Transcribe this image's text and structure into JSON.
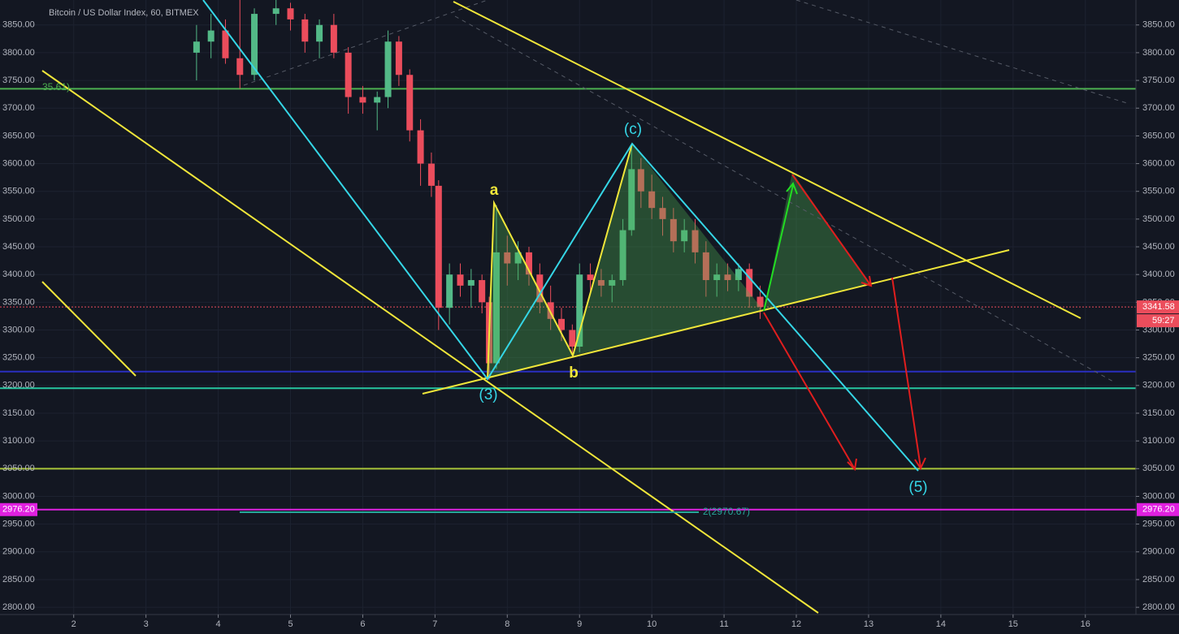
{
  "chart_data": {
    "type": "candlestick",
    "title": "Bitcoin / US Dollar Index, 60, BITMEX",
    "x": [
      3.7,
      3.9,
      4.1,
      4.3,
      4.5,
      4.8,
      5.0,
      5.2,
      5.4,
      5.6,
      5.8,
      6.0,
      6.2,
      6.35,
      6.5,
      6.65,
      6.8,
      6.95,
      7.05,
      7.2,
      7.35,
      7.5,
      7.65,
      7.75,
      7.85,
      8.0,
      8.15,
      8.3,
      8.45,
      8.6,
      8.75,
      8.9,
      9.0,
      9.15,
      9.3,
      9.45,
      9.6,
      9.72,
      9.85,
      10.0,
      10.15,
      10.3,
      10.45,
      10.6,
      10.75,
      10.9,
      11.05,
      11.2,
      11.35,
      11.5
    ],
    "open": [
      3800,
      3820,
      3840,
      3790,
      3760,
      3870,
      3880,
      3860,
      3820,
      3850,
      3800,
      3720,
      3710,
      3720,
      3820,
      3760,
      3660,
      3600,
      3560,
      3340,
      3400,
      3380,
      3390,
      3350,
      3240,
      3440,
      3420,
      3440,
      3400,
      3350,
      3320,
      3300,
      3270,
      3400,
      3390,
      3380,
      3390,
      3480,
      3590,
      3550,
      3520,
      3500,
      3460,
      3480,
      3440,
      3390,
      3400,
      3390,
      3410,
      3360
    ],
    "high": [
      3850,
      3870,
      3860,
      3895,
      3880,
      3895,
      3890,
      3870,
      3860,
      3870,
      3810,
      3740,
      3730,
      3840,
      3830,
      3770,
      3680,
      3620,
      3570,
      3420,
      3420,
      3410,
      3400,
      3360,
      3525,
      3470,
      3460,
      3450,
      3420,
      3380,
      3340,
      3310,
      3420,
      3420,
      3410,
      3400,
      3500,
      3635,
      3610,
      3580,
      3540,
      3520,
      3500,
      3500,
      3460,
      3420,
      3420,
      3420,
      3420,
      3380
    ],
    "low": [
      3750,
      3790,
      3780,
      3735,
      3750,
      3850,
      3840,
      3800,
      3790,
      3790,
      3690,
      3690,
      3660,
      3700,
      3740,
      3640,
      3560,
      3540,
      3300,
      3310,
      3360,
      3340,
      3330,
      3210,
      3230,
      3380,
      3390,
      3380,
      3330,
      3300,
      3280,
      3250,
      3260,
      3370,
      3360,
      3350,
      3380,
      3470,
      3520,
      3500,
      3470,
      3440,
      3440,
      3420,
      3360,
      3360,
      3370,
      3370,
      3340,
      3320
    ],
    "close": [
      3820,
      3840,
      3790,
      3760,
      3870,
      3880,
      3860,
      3820,
      3850,
      3800,
      3720,
      3710,
      3720,
      3820,
      3760,
      3660,
      3600,
      3560,
      3340,
      3400,
      3380,
      3390,
      3350,
      3240,
      3440,
      3420,
      3440,
      3400,
      3350,
      3320,
      3300,
      3270,
      3400,
      3390,
      3380,
      3390,
      3480,
      3590,
      3550,
      3520,
      3500,
      3460,
      3480,
      3440,
      3390,
      3400,
      3390,
      3410,
      3360,
      3341.58
    ],
    "up_color": "#53b987",
    "down_color": "#eb4d5c",
    "xlim": [
      0.98,
      16.7
    ],
    "ylim": [
      2787,
      3895
    ],
    "xticks": [
      2,
      3,
      4,
      5,
      6,
      7,
      8,
      9,
      10,
      11,
      12,
      13,
      14,
      15,
      16
    ],
    "yticks": [
      {
        "value": 2800,
        "label": "2800.00"
      },
      {
        "value": 2850,
        "label": "2850.00"
      },
      {
        "value": 2900,
        "label": "2900.00"
      },
      {
        "value": 2950,
        "label": "2950.00"
      },
      {
        "value": 3000,
        "label": "3000.00"
      },
      {
        "value": 3050,
        "label": "3050.00"
      },
      {
        "value": 3100,
        "label": "3100.00"
      },
      {
        "value": 3150,
        "label": "3150.00"
      },
      {
        "value": 3200,
        "label": "3200.00"
      },
      {
        "value": 3250,
        "label": "3250.00"
      },
      {
        "value": 3300,
        "label": "3300.00"
      },
      {
        "value": 3350,
        "label": "3350.00"
      },
      {
        "value": 3400,
        "label": "3400.00"
      },
      {
        "value": 3450,
        "label": "3450.00"
      },
      {
        "value": 3500,
        "label": "3500.00"
      },
      {
        "value": 3550,
        "label": "3550.00"
      },
      {
        "value": 3600,
        "label": "3600.00"
      },
      {
        "value": 3650,
        "label": "3650.00"
      },
      {
        "value": 3700,
        "label": "3700.00"
      },
      {
        "value": 3750,
        "label": "3750.00"
      },
      {
        "value": 3800,
        "label": "3800.00"
      },
      {
        "value": 3850,
        "label": "3850.00"
      }
    ],
    "grid": true,
    "levels": [
      {
        "value": 3735,
        "color": "#4caf50"
      },
      {
        "value": 3225,
        "color": "#2a2fc0"
      },
      {
        "value": 3195,
        "color": "#26c6a0"
      },
      {
        "value": 3050,
        "color": "#a8c43a"
      },
      {
        "value": 2976.2,
        "label": "2976.20",
        "color": "#e020e0"
      }
    ],
    "price_line": {
      "value": 3341.58,
      "timer": "59:27",
      "color": "#eb4d5c"
    },
    "annotations": [
      "35.61)",
      "2(2970.67)",
      "a",
      "b",
      "(c)",
      "(3)",
      "(5)"
    ]
  }
}
